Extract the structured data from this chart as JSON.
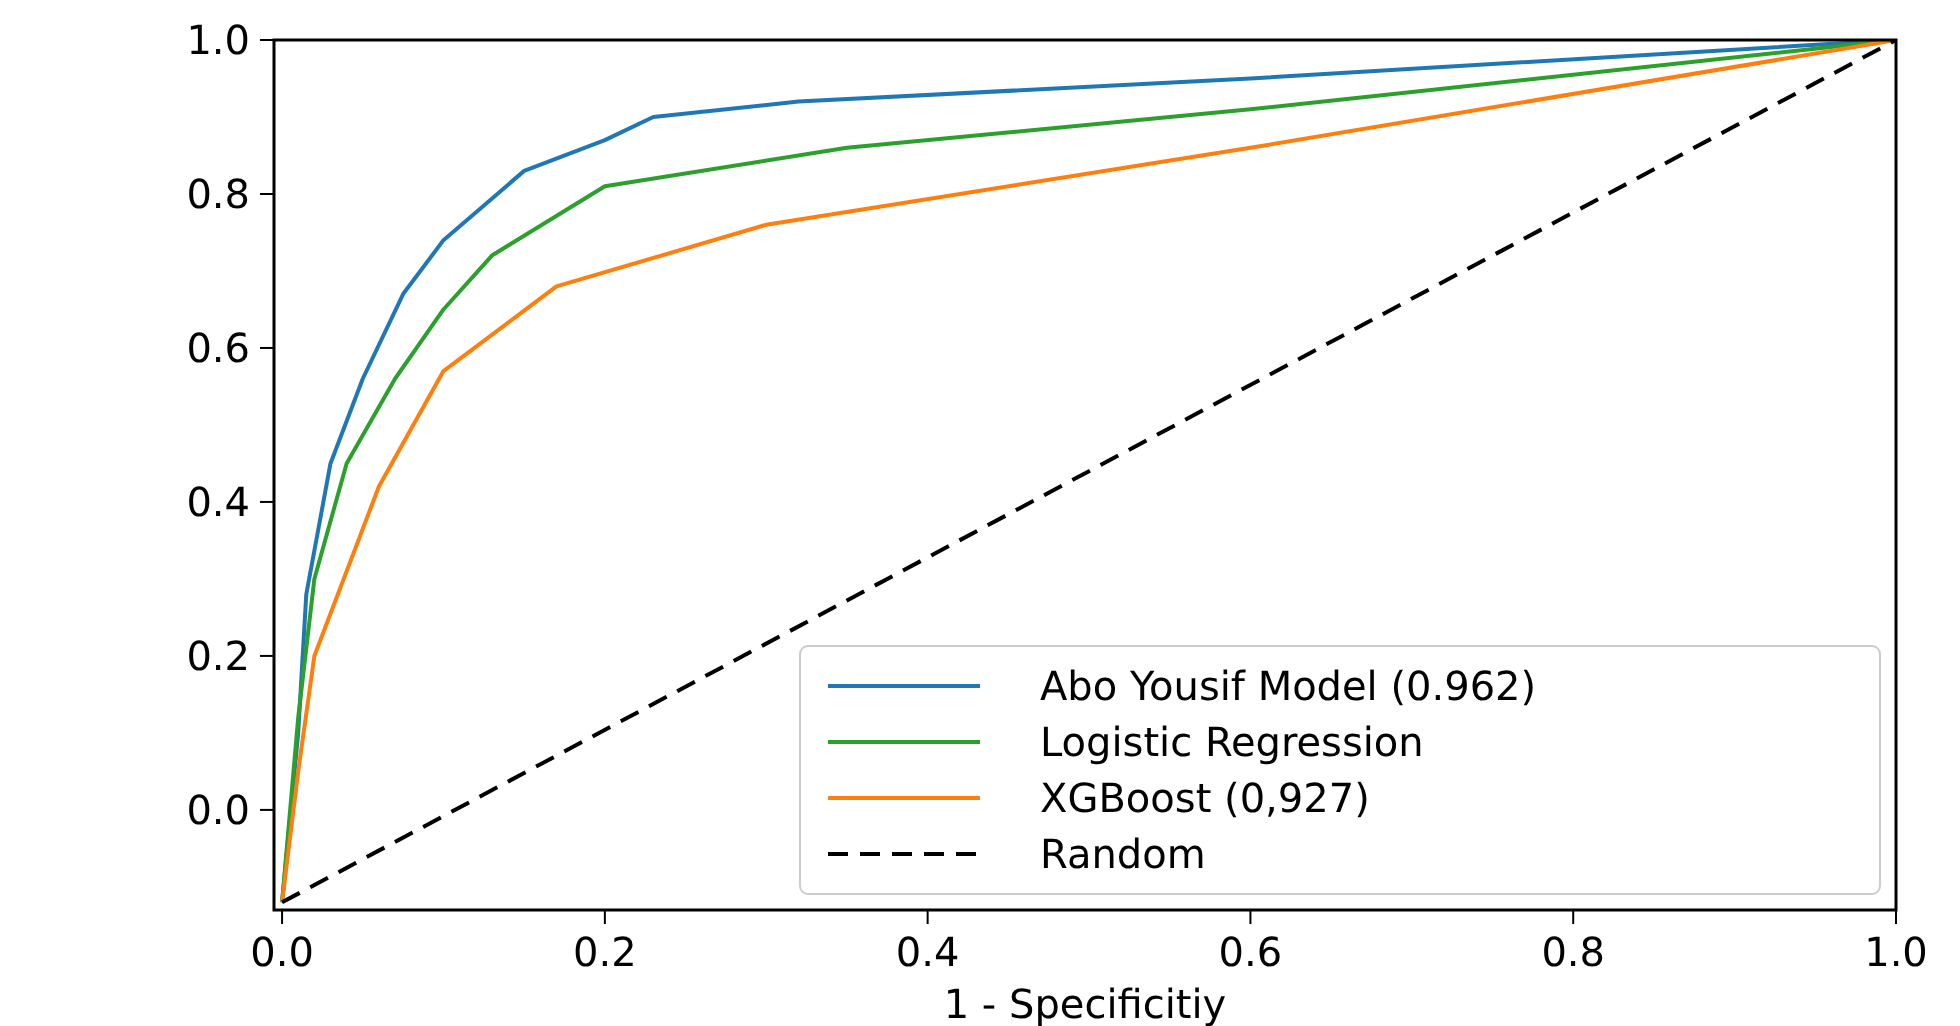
{
  "chart_data": {
    "type": "line",
    "xlabel": "1 - Specificitiy",
    "xlim": [
      -0.005,
      1.0
    ],
    "ylim": [
      -0.13,
      1.0
    ],
    "xticks": [
      {
        "value": 0,
        "label": "0.0"
      },
      0.2,
      0.4,
      0.6,
      0.8,
      {
        "value": 1,
        "label": "1.0"
      }
    ],
    "yticks": [
      {
        "value": 0,
        "label": "0.0"
      },
      0.2,
      0.4,
      0.6,
      0.8,
      {
        "value": 1,
        "label": "1.0"
      }
    ],
    "grid": false,
    "legend": "bottom right",
    "series": [
      {
        "name": "Abo Yousif Model (0.962)",
        "color": "#1f77b4",
        "x": [
          0,
          0.01,
          0.015,
          0.03,
          0.05,
          0.075,
          0.1,
          0.15,
          0.2,
          0.23,
          0.32,
          0.6,
          1
        ],
        "values": [
          -0.12,
          0.1,
          0.28,
          0.45,
          0.56,
          0.67,
          0.74,
          0.83,
          0.87,
          0.9,
          0.92,
          0.95,
          1
        ]
      },
      {
        "name": "Logistic Regression",
        "color": "#2ca02c",
        "x": [
          0,
          0.01,
          0.02,
          0.04,
          0.07,
          0.1,
          0.13,
          0.2,
          0.35,
          0.6,
          1
        ],
        "values": [
          -0.12,
          0.12,
          0.3,
          0.45,
          0.56,
          0.65,
          0.72,
          0.81,
          0.86,
          0.91,
          1
        ]
      },
      {
        "name": "XGBoost (0,927)",
        "color": "#ff7f0e",
        "x": [
          0,
          0.01,
          0.02,
          0.06,
          0.1,
          0.17,
          0.3,
          0.6,
          1
        ],
        "values": [
          -0.12,
          0.05,
          0.2,
          0.42,
          0.57,
          0.68,
          0.76,
          0.86,
          1
        ]
      },
      {
        "name": "Random",
        "color": "#000000",
        "line_style": "dashed",
        "x": [
          0,
          1
        ],
        "values": [
          -0.12,
          1
        ]
      }
    ]
  }
}
